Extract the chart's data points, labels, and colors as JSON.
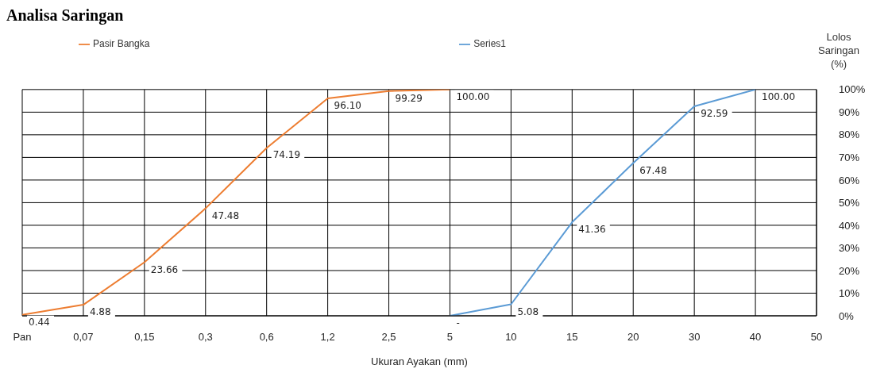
{
  "chart_data": {
    "type": "line",
    "title": "Analisa Saringan",
    "xlabel": "Ukuran Ayakan  (mm)",
    "ylabel": "Lolos Saringan (%)",
    "categories": [
      "Pan",
      "0,07",
      "0,15",
      "0,3",
      "0,6",
      "1,2",
      "2,5",
      "5",
      "10",
      "15",
      "20",
      "30",
      "40",
      "50"
    ],
    "series": [
      {
        "name": "Pasir Bangka",
        "color": "#ed7d31",
        "values": [
          0.44,
          4.88,
          23.66,
          47.48,
          74.19,
          96.1,
          99.29,
          100,
          null,
          null,
          null,
          null,
          null,
          null
        ],
        "value_labels": [
          "0.44",
          "4.88",
          "23.66",
          "47.48",
          "74.19",
          "96.10",
          "99.29",
          "100.00",
          null,
          null,
          null,
          null,
          null,
          null
        ]
      },
      {
        "name": "Series1",
        "color": "#5b9bd5",
        "values": [
          null,
          null,
          null,
          null,
          null,
          null,
          null,
          0,
          5.08,
          41.36,
          67.48,
          92.59,
          100,
          null
        ],
        "value_labels": [
          null,
          null,
          null,
          null,
          null,
          null,
          null,
          "-",
          "5.08",
          "41.36",
          "67.48",
          "92.59",
          "100.00",
          null
        ]
      }
    ],
    "ylim": [
      0,
      100
    ],
    "yticks": [
      {
        "value": 0,
        "label": "0%"
      },
      {
        "value": 10,
        "label": "10%"
      },
      {
        "value": 20,
        "label": "20%"
      },
      {
        "value": 30,
        "label": "30%"
      },
      {
        "value": 40,
        "label": "40%"
      },
      {
        "value": 50,
        "label": "50%"
      },
      {
        "value": 60,
        "label": "60%"
      },
      {
        "value": 70,
        "label": "70%"
      },
      {
        "value": 80,
        "label": "80%"
      },
      {
        "value": 90,
        "label": "90%"
      },
      {
        "value": 100,
        "label": "100%"
      }
    ],
    "grid": true,
    "legend": "top",
    "marker": "none",
    "line_style": "solid"
  }
}
